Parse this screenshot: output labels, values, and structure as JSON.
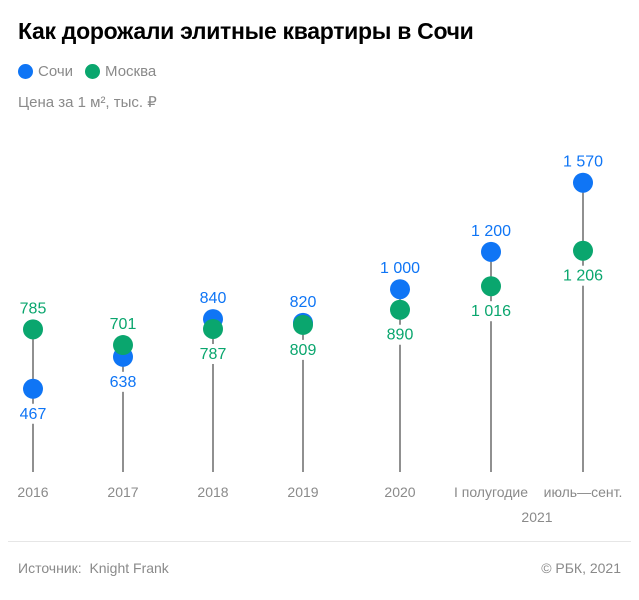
{
  "title": "Как дорожали элитные квартиры в Сочи",
  "unit_label": "Цена за 1 м², тыс. ₽",
  "footer": {
    "source_label": "Источник:",
    "source": "Knight Frank",
    "copyright": "© РБК, 2021"
  },
  "chart_data": {
    "type": "dot",
    "title": "Как дорожали элитные квартиры в Сочи",
    "ylabel": "Цена за 1 м², тыс. ₽",
    "categories": [
      "2016",
      "2017",
      "2018",
      "2019",
      "2020",
      "I полугодие",
      "июль—сент."
    ],
    "category_group": {
      "label": "2021",
      "spans": [
        "I полугодие",
        "июль—сент."
      ]
    },
    "series": [
      {
        "name": "Сочи",
        "color": "#0f75f5",
        "values": [
          467,
          638,
          840,
          820,
          1000,
          1200,
          1570
        ],
        "labels": [
          "467",
          "638",
          "840",
          "820",
          "1 000",
          "1 200",
          "1 570"
        ]
      },
      {
        "name": "Москва",
        "color": "#0aa66e",
        "values": [
          785,
          701,
          787,
          809,
          890,
          1016,
          1206
        ],
        "labels": [
          "785",
          "701",
          "787",
          "809",
          "890",
          "1 016",
          "1 206"
        ]
      }
    ],
    "legend": "top-left",
    "grid": false
  }
}
